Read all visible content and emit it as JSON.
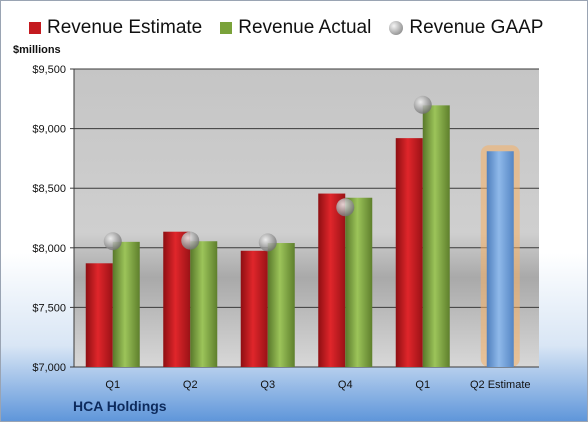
{
  "chart_data": {
    "type": "bar",
    "units_label": "$millions",
    "company": "HCA Holdings",
    "categories": [
      "Q1",
      "Q2",
      "Q3",
      "Q4",
      "Q1",
      "Q2 Estimate"
    ],
    "series": [
      {
        "name": "Revenue Estimate",
        "type": "bar",
        "values": [
          7870,
          8135,
          7975,
          8455,
          8920,
          null
        ],
        "color": "#c41a1f"
      },
      {
        "name": "Revenue Actual",
        "type": "bar",
        "values": [
          8050,
          8055,
          8040,
          8420,
          9195,
          null
        ],
        "color": "#7aa23a"
      },
      {
        "name": "Revenue GAAP",
        "type": "scatter",
        "values": [
          8055,
          8060,
          8045,
          8340,
          9200,
          null
        ],
        "color": "#9a9a9a"
      }
    ],
    "forecast": {
      "category": "Q2 Estimate",
      "value": 8810,
      "color": "#6f9ed6",
      "glow": "#f5b066"
    },
    "yticks": [
      "$7,000",
      "$7,500",
      "$8,000",
      "$8,500",
      "$9,000",
      "$9,500"
    ],
    "ylim": [
      7000,
      9500
    ],
    "grid": true,
    "legend_position": "top"
  }
}
